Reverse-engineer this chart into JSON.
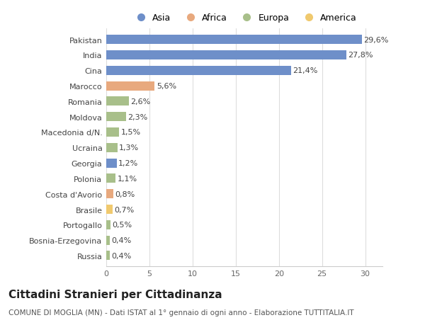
{
  "categories": [
    "Pakistan",
    "India",
    "Cina",
    "Marocco",
    "Romania",
    "Moldova",
    "Macedonia d/N.",
    "Ucraina",
    "Georgia",
    "Polonia",
    "Costa d'Avorio",
    "Brasile",
    "Portogallo",
    "Bosnia-Erzegovina",
    "Russia"
  ],
  "values": [
    29.6,
    27.8,
    21.4,
    5.6,
    2.6,
    2.3,
    1.5,
    1.3,
    1.2,
    1.1,
    0.8,
    0.7,
    0.5,
    0.4,
    0.4
  ],
  "labels": [
    "29,6%",
    "27,8%",
    "21,4%",
    "5,6%",
    "2,6%",
    "2,3%",
    "1,5%",
    "1,3%",
    "1,2%",
    "1,1%",
    "0,8%",
    "0,7%",
    "0,5%",
    "0,4%",
    "0,4%"
  ],
  "colors": [
    "#6e8fc9",
    "#6e8fc9",
    "#6e8fc9",
    "#e8a97e",
    "#a8bf8a",
    "#a8bf8a",
    "#a8bf8a",
    "#a8bf8a",
    "#6e8fc9",
    "#a8bf8a",
    "#e8a97e",
    "#f0c96e",
    "#a8bf8a",
    "#a8bf8a",
    "#a8bf8a"
  ],
  "legend": [
    {
      "label": "Asia",
      "color": "#6e8fc9"
    },
    {
      "label": "Africa",
      "color": "#e8a97e"
    },
    {
      "label": "Europa",
      "color": "#a8bf8a"
    },
    {
      "label": "America",
      "color": "#f0c96e"
    }
  ],
  "title": "Cittadini Stranieri per Cittadinanza",
  "subtitle": "COMUNE DI MOGLIA (MN) - Dati ISTAT al 1° gennaio di ogni anno - Elaborazione TUTTITALIA.IT",
  "xlim": [
    0,
    32
  ],
  "xticks": [
    0,
    5,
    10,
    15,
    20,
    25,
    30
  ],
  "background_color": "#ffffff",
  "plot_background": "#ffffff",
  "bar_height": 0.6,
  "label_fontsize": 8,
  "tick_fontsize": 8,
  "title_fontsize": 11,
  "subtitle_fontsize": 7.5,
  "legend_fontsize": 9,
  "legend_marker_size": 9
}
